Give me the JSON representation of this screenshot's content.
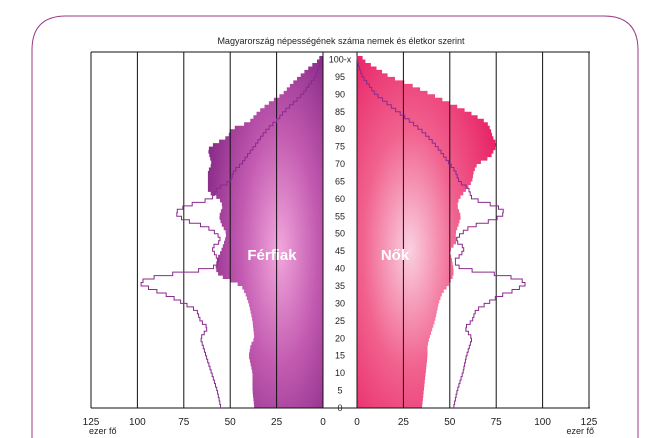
{
  "chart_data": {
    "type": "population_pyramid",
    "title": "Magyarország népességének száma nemek és életkor szerint",
    "unit_label": "ezer fő",
    "x_ticks": [
      0,
      25,
      50,
      75,
      100,
      125
    ],
    "x_tick_labels": [
      "0",
      "25",
      "50",
      "75",
      "100",
      "125"
    ],
    "xlim": [
      0,
      125
    ],
    "ylim": [
      0,
      101
    ],
    "y_ticks": [
      0,
      5,
      10,
      15,
      20,
      25,
      30,
      35,
      40,
      45,
      50,
      55,
      60,
      65,
      70,
      75,
      80,
      85,
      90,
      95,
      100
    ],
    "y_tick_labels": [
      "0",
      "5",
      "10",
      "15",
      "20",
      "25",
      "30",
      "35",
      "40",
      "45",
      "50",
      "55",
      "60",
      "65",
      "70",
      "75",
      "80",
      "85",
      "90",
      "95",
      "100-x"
    ],
    "left_label": "Férfiak",
    "right_label": "Nők",
    "colors": {
      "male_dark": "#7a1f7e",
      "male_light": "#e48ad0",
      "female_dark": "#e6175e",
      "female_light": "#f7b3cc",
      "outline": "#8a2a8e",
      "grid": "#111111",
      "frame": "#9a3a86"
    },
    "male_anchor_ages": [
      0,
      5,
      10,
      15,
      18,
      20,
      25,
      30,
      33,
      35,
      38,
      40,
      43,
      45,
      48,
      50,
      53,
      55,
      58,
      60,
      62,
      65,
      68,
      70,
      72,
      74,
      75,
      78,
      80,
      82,
      85,
      88,
      90,
      93,
      95,
      98,
      100
    ],
    "male_anchor_values": [
      37,
      38,
      38,
      40,
      39,
      37,
      38,
      40,
      42,
      44,
      56,
      58,
      57,
      55,
      53,
      52,
      55,
      56,
      54,
      56,
      62,
      62,
      62,
      60,
      61,
      62,
      61,
      51,
      50,
      40,
      35,
      28,
      22,
      17,
      13,
      7,
      2
    ],
    "female_anchor_ages": [
      0,
      5,
      10,
      15,
      18,
      20,
      25,
      30,
      33,
      35,
      38,
      40,
      43,
      45,
      48,
      50,
      53,
      55,
      58,
      60,
      62,
      65,
      68,
      70,
      72,
      74,
      75,
      76,
      78,
      80,
      82,
      85,
      88,
      90,
      93,
      95,
      98,
      100
    ],
    "female_anchor_values": [
      35,
      36,
      37,
      38,
      38,
      39,
      42,
      44,
      46,
      49,
      52,
      52,
      51,
      50,
      54,
      53,
      55,
      56,
      54,
      55,
      58,
      62,
      63,
      65,
      72,
      74,
      75,
      75,
      73,
      72,
      70,
      60,
      48,
      40,
      28,
      18,
      9,
      3
    ],
    "male_outline_anchor_ages": [
      0,
      5,
      10,
      15,
      20,
      23,
      25,
      28,
      30,
      32,
      34,
      36,
      38,
      40,
      42,
      44,
      46,
      48,
      50,
      52,
      54,
      56,
      58,
      60,
      63,
      65,
      68,
      70,
      73,
      75,
      78,
      80,
      83,
      85,
      88,
      90,
      93,
      95,
      98,
      100
    ],
    "male_outline_values": [
      55,
      57,
      60,
      63,
      66,
      62,
      66,
      68,
      75,
      82,
      92,
      100,
      88,
      60,
      56,
      58,
      60,
      55,
      57,
      63,
      75,
      80,
      74,
      60,
      57,
      50,
      48,
      44,
      40,
      37,
      33,
      30,
      24,
      21,
      15,
      11,
      7,
      4,
      2,
      1
    ],
    "female_outline_anchor_ages": [
      0,
      5,
      10,
      15,
      20,
      23,
      25,
      28,
      30,
      32,
      34,
      36,
      38,
      40,
      42,
      44,
      46,
      48,
      50,
      52,
      54,
      56,
      58,
      60,
      63,
      65,
      68,
      70,
      73,
      75,
      78,
      80,
      83,
      85,
      88,
      90,
      93,
      95,
      98,
      100
    ],
    "female_outline_values": [
      52,
      54,
      57,
      59,
      62,
      58,
      62,
      64,
      70,
      76,
      86,
      92,
      80,
      56,
      52,
      56,
      58,
      53,
      56,
      61,
      74,
      80,
      75,
      62,
      60,
      55,
      53,
      50,
      46,
      43,
      38,
      34,
      27,
      22,
      15,
      10,
      6,
      3,
      1,
      0
    ]
  }
}
